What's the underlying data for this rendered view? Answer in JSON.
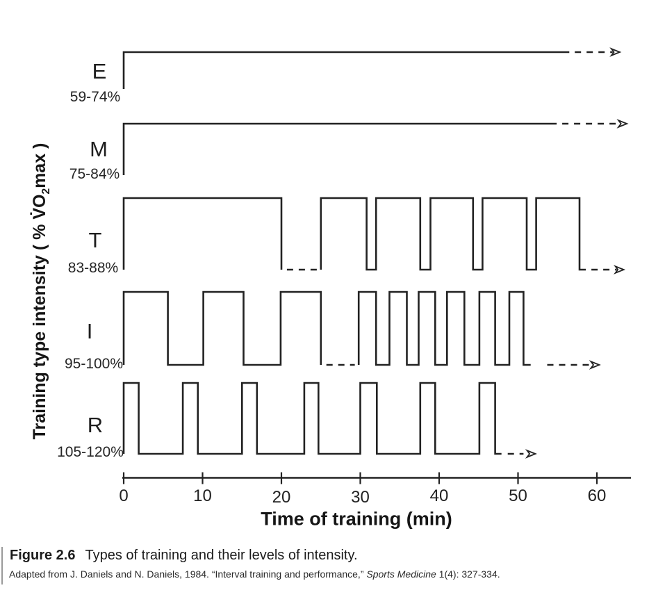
{
  "figure": {
    "caption_label": "Figure 2.6",
    "caption_text": "Types of training and their levels of intensity.",
    "attribution_prefix": "Adapted from J. Daniels and N. Daniels, 1984. “Interval training and performance,” ",
    "attribution_journal": "Sports Medicine",
    "attribution_suffix": " 1(4): 327-334."
  },
  "chart_data": {
    "type": "line",
    "subtype": "square-wave-steps",
    "title": "",
    "xlabel": "Time of training (min)",
    "ylabel_parts": {
      "pre": "Training type intensity ( % V̇O",
      "sub": "2",
      "post": "max )"
    },
    "xlim": [
      0,
      64
    ],
    "grid": false,
    "legend_position": "none",
    "line_color": "#222222",
    "x_ticks": [
      0,
      10,
      20,
      30,
      40,
      50,
      60
    ],
    "x_tick_labels": [
      "0",
      "10",
      "20",
      "30",
      "40",
      "50",
      "60"
    ],
    "rows": [
      {
        "label": "E",
        "intensity_label": "59-74%",
        "intensity_range_pct": [
          59,
          74
        ],
        "segments": [
          {
            "style": "solid",
            "points_min": [
              [
                0,
                0
              ],
              [
                0,
                1
              ],
              [
                56.5,
                1
              ]
            ]
          },
          {
            "style": "dashed",
            "points_min": [
              [
                57.2,
                1
              ],
              [
                62,
                1
              ]
            ]
          }
        ],
        "arrow_min": 62.9,
        "arrow_level": 1
      },
      {
        "label": "M",
        "intensity_label": "75-84%",
        "intensity_range_pct": [
          75,
          84
        ],
        "segments": [
          {
            "style": "solid",
            "points_min": [
              [
                0,
                0
              ],
              [
                0,
                1
              ],
              [
                54.9,
                1
              ]
            ]
          },
          {
            "style": "dashed",
            "points_min": [
              [
                55.6,
                1
              ],
              [
                62.8,
                1
              ]
            ]
          }
        ],
        "arrow_min": 63.8,
        "arrow_level": 1
      },
      {
        "label": "T",
        "intensity_label": "83-88%",
        "intensity_range_pct": [
          83,
          88
        ],
        "segments": [
          {
            "style": "solid",
            "points_min": [
              [
                0,
                0
              ],
              [
                0,
                1
              ],
              [
                20,
                1
              ],
              [
                20,
                0
              ]
            ]
          },
          {
            "style": "dashed",
            "points_min": [
              [
                20.7,
                0
              ],
              [
                24.5,
                0
              ]
            ]
          },
          {
            "style": "solid",
            "points_min": [
              [
                25,
                0
              ],
              [
                25,
                1
              ],
              [
                30.8,
                1
              ],
              [
                30.8,
                0
              ],
              [
                32,
                0
              ],
              [
                32,
                1
              ],
              [
                37.6,
                1
              ],
              [
                37.6,
                0
              ],
              [
                38.9,
                0
              ],
              [
                38.9,
                1
              ],
              [
                44.3,
                1
              ],
              [
                44.3,
                0
              ],
              [
                45.5,
                0
              ],
              [
                45.5,
                1
              ],
              [
                51.1,
                1
              ],
              [
                51.1,
                0
              ],
              [
                52.3,
                0
              ],
              [
                52.3,
                1
              ],
              [
                57.8,
                1
              ],
              [
                57.8,
                0
              ],
              [
                58.6,
                0
              ]
            ]
          },
          {
            "style": "dashed",
            "points_min": [
              [
                59.3,
                0
              ],
              [
                62.5,
                0
              ]
            ]
          }
        ],
        "arrow_min": 63.4,
        "arrow_level": 0
      },
      {
        "label": "I",
        "intensity_label": "95-100%",
        "intensity_range_pct": [
          95,
          100
        ],
        "segments": [
          {
            "style": "solid",
            "points_min": [
              [
                0,
                0
              ],
              [
                0,
                1
              ],
              [
                5.6,
                1
              ],
              [
                5.6,
                0
              ],
              [
                10.1,
                0
              ],
              [
                10.1,
                1
              ],
              [
                15.2,
                1
              ],
              [
                15.2,
                0
              ],
              [
                19.9,
                0
              ],
              [
                19.9,
                1
              ],
              [
                25,
                1
              ],
              [
                25,
                0
              ]
            ]
          },
          {
            "style": "dashed",
            "points_min": [
              [
                25.7,
                0
              ],
              [
                29.3,
                0
              ]
            ]
          },
          {
            "style": "solid",
            "points_min": [
              [
                29.8,
                0
              ],
              [
                29.8,
                1
              ],
              [
                32,
                1
              ],
              [
                32,
                0
              ],
              [
                33.7,
                0
              ],
              [
                33.7,
                1
              ],
              [
                35.9,
                1
              ],
              [
                35.9,
                0
              ],
              [
                37.4,
                0
              ],
              [
                37.4,
                1
              ],
              [
                39.5,
                1
              ],
              [
                39.5,
                0
              ],
              [
                41,
                0
              ],
              [
                41,
                1
              ],
              [
                43.2,
                1
              ],
              [
                43.2,
                0
              ],
              [
                45.1,
                0
              ],
              [
                45.1,
                1
              ],
              [
                47.1,
                1
              ],
              [
                47.1,
                0
              ],
              [
                48.9,
                0
              ],
              [
                48.9,
                1
              ],
              [
                50.7,
                1
              ],
              [
                50.7,
                0
              ],
              [
                51.6,
                0
              ]
            ]
          },
          {
            "style": "dashed",
            "points_min": [
              [
                53.7,
                0
              ],
              [
                59.3,
                0
              ]
            ]
          }
        ],
        "arrow_min": 60.3,
        "arrow_level": 0
      },
      {
        "label": "R",
        "intensity_label": "105-120%",
        "intensity_range_pct": [
          105,
          120
        ],
        "segments": [
          {
            "style": "solid",
            "points_min": [
              [
                0,
                0
              ],
              [
                0,
                1
              ],
              [
                1.9,
                1
              ],
              [
                1.9,
                0
              ],
              [
                7.5,
                0
              ],
              [
                7.5,
                1
              ],
              [
                9.4,
                1
              ],
              [
                9.4,
                0
              ],
              [
                15,
                0
              ],
              [
                15,
                1
              ],
              [
                16.9,
                1
              ],
              [
                16.9,
                0
              ],
              [
                22.9,
                0
              ],
              [
                22.9,
                1
              ],
              [
                24.7,
                1
              ],
              [
                24.7,
                0
              ],
              [
                30,
                0
              ],
              [
                30,
                1
              ],
              [
                32.1,
                1
              ],
              [
                32.1,
                0
              ],
              [
                37.6,
                0
              ],
              [
                37.6,
                1
              ],
              [
                39.5,
                1
              ],
              [
                39.5,
                0
              ],
              [
                45.1,
                0
              ],
              [
                45.1,
                1
              ],
              [
                47.1,
                1
              ],
              [
                47.1,
                0
              ],
              [
                47.9,
                0
              ]
            ]
          },
          {
            "style": "dashed",
            "points_min": [
              [
                48.7,
                0
              ],
              [
                50.7,
                0
              ]
            ]
          }
        ],
        "arrow_min": 52.2,
        "arrow_level": 0
      }
    ]
  }
}
